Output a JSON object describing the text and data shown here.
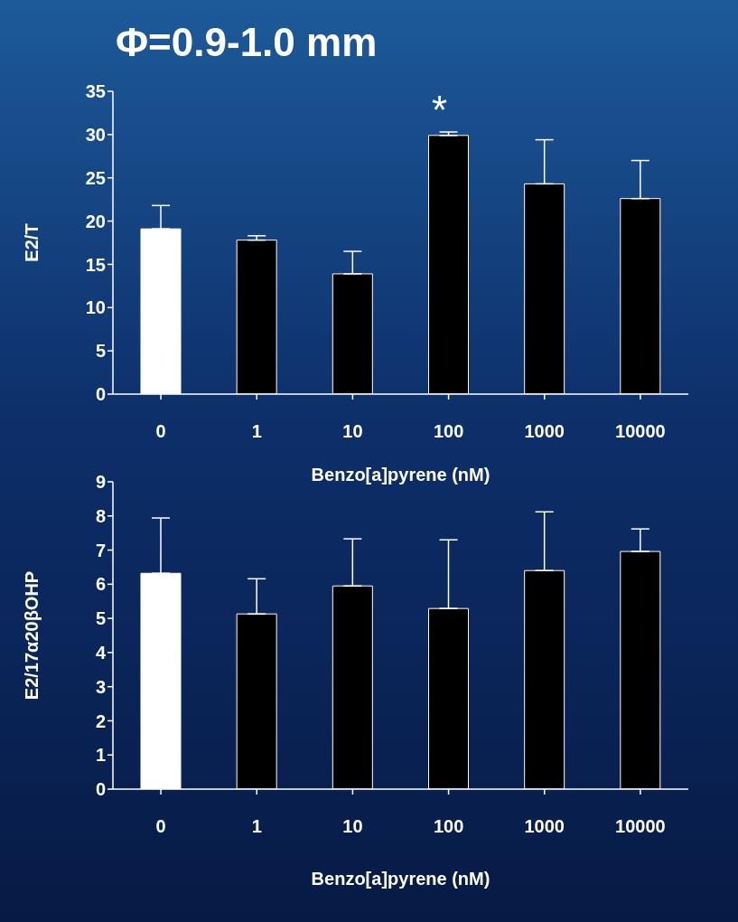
{
  "chart_data": [
    {
      "type": "bar",
      "title": "Φ=0.9-1.0 mm",
      "xlabel": "Benzo[a]pyrene (nM)",
      "ylabel": "E2/T",
      "categories": [
        "0",
        "1",
        "10",
        "100",
        "1000",
        "10000"
      ],
      "values": [
        19.1,
        17.8,
        13.9,
        29.9,
        24.3,
        22.6
      ],
      "errors": [
        [
          19.1,
          21.8
        ],
        [
          17.8,
          18.3
        ],
        [
          13.9,
          16.5
        ],
        [
          29.9,
          30.3
        ],
        [
          24.3,
          29.4
        ],
        [
          22.6,
          27.0
        ]
      ],
      "colors": [
        "#ffffff",
        "#000000",
        "#000000",
        "#000000",
        "#000000",
        "#000000"
      ],
      "ylim": [
        0,
        35
      ],
      "yticks": [
        0,
        5,
        10,
        15,
        20,
        25,
        30,
        35
      ],
      "grid": false,
      "legend": false,
      "annotations": [
        "*"
      ]
    },
    {
      "type": "bar",
      "xlabel": "Benzo[a]pyrene (nM)",
      "ylabel": "E2/17α20βOHP",
      "categories": [
        "0",
        "1",
        "10",
        "100",
        "1000",
        "10000"
      ],
      "values": [
        6.32,
        5.13,
        5.95,
        5.29,
        6.4,
        6.96
      ],
      "errors": [
        [
          6.32,
          7.94
        ],
        [
          5.13,
          6.16
        ],
        [
          5.95,
          7.33
        ],
        [
          5.29,
          7.3
        ],
        [
          6.4,
          8.12
        ],
        [
          6.96,
          7.62
        ]
      ],
      "colors": [
        "#ffffff",
        "#000000",
        "#000000",
        "#000000",
        "#000000",
        "#000000"
      ],
      "ylim": [
        0,
        9
      ],
      "yticks": [
        0,
        1,
        2,
        3,
        4,
        5,
        6,
        7,
        8,
        9
      ],
      "grid": false,
      "legend": false
    }
  ]
}
